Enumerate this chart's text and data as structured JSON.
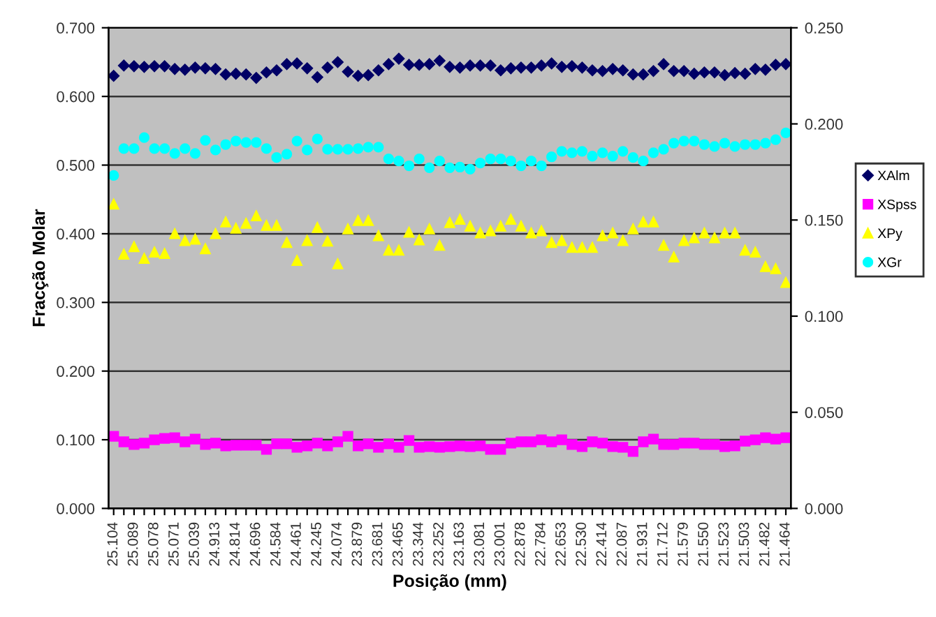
{
  "chart_data": {
    "type": "scatter",
    "xlabel": "Posição (mm)",
    "ylabel": "Fracção Molar",
    "categories": [
      "25.104",
      null,
      "25.089",
      null,
      "25.078",
      null,
      "25.071",
      null,
      "25.039",
      null,
      "24.913",
      null,
      "24.814",
      null,
      "24.696",
      null,
      "24.584",
      null,
      "24.461",
      null,
      "24.245",
      null,
      "24.074",
      null,
      "23.879",
      null,
      "23.681",
      null,
      "23.465",
      null,
      "23.344",
      null,
      "23.252",
      null,
      "23.163",
      null,
      "23.081",
      null,
      "23.001",
      null,
      "22.878",
      null,
      "22.784",
      null,
      "22.653",
      null,
      "22.530",
      null,
      "22.414",
      null,
      "22.087",
      null,
      "21.931",
      null,
      "21.712",
      null,
      "21.579",
      null,
      "21.550",
      null,
      "21.523",
      null,
      "21.503",
      null,
      "21.482",
      null,
      "21.464"
    ],
    "series": [
      {
        "name": "XAlm",
        "color": "#000066",
        "marker": "diamond",
        "values": [
          0.63,
          0.645,
          0.644,
          0.643,
          0.644,
          0.644,
          0.64,
          0.639,
          0.642,
          0.641,
          0.64,
          0.632,
          0.633,
          0.632,
          0.627,
          0.635,
          0.638,
          0.647,
          0.648,
          0.641,
          0.628,
          0.642,
          0.65,
          0.636,
          0.63,
          0.631,
          0.638,
          0.647,
          0.655,
          0.646,
          0.646,
          0.647,
          0.652,
          0.643,
          0.642,
          0.645,
          0.645,
          0.645,
          0.638,
          0.641,
          0.642,
          0.642,
          0.645,
          0.648,
          0.643,
          0.644,
          0.642,
          0.638,
          0.637,
          0.64,
          0.638,
          0.632,
          0.632,
          0.637,
          0.647,
          0.637,
          0.637,
          0.633,
          0.635,
          0.635,
          0.631,
          0.634,
          0.633,
          0.64,
          0.639,
          0.646,
          0.647
        ]
      },
      {
        "name": "XSpss",
        "color": "#ff00ff",
        "marker": "square",
        "values": [
          0.105,
          0.097,
          0.093,
          0.095,
          0.1,
          0.102,
          0.103,
          0.097,
          0.101,
          0.093,
          0.095,
          0.091,
          0.092,
          0.092,
          0.092,
          0.086,
          0.094,
          0.094,
          0.089,
          0.091,
          0.095,
          0.091,
          0.097,
          0.105,
          0.091,
          0.094,
          0.089,
          0.094,
          0.089,
          0.099,
          0.089,
          0.09,
          0.089,
          0.09,
          0.091,
          0.09,
          0.091,
          0.086,
          0.086,
          0.095,
          0.097,
          0.097,
          0.1,
          0.097,
          0.1,
          0.093,
          0.09,
          0.097,
          0.095,
          0.09,
          0.089,
          0.083,
          0.097,
          0.101,
          0.093,
          0.093,
          0.095,
          0.095,
          0.093,
          0.093,
          0.09,
          0.091,
          0.098,
          0.1,
          0.103,
          0.101,
          0.103
        ]
      },
      {
        "name": "XPy",
        "color": "#ffff00",
        "marker": "triangle",
        "values": [
          0.443,
          0.37,
          0.381,
          0.364,
          0.373,
          0.371,
          0.4,
          0.39,
          0.392,
          0.378,
          0.4,
          0.417,
          0.408,
          0.415,
          0.426,
          0.412,
          0.412,
          0.387,
          0.361,
          0.39,
          0.409,
          0.389,
          0.356,
          0.407,
          0.419,
          0.419,
          0.397,
          0.376,
          0.376,
          0.402,
          0.391,
          0.407,
          0.383,
          0.416,
          0.421,
          0.411,
          0.401,
          0.404,
          0.411,
          0.421,
          0.411,
          0.401,
          0.404,
          0.387,
          0.39,
          0.38,
          0.38,
          0.38,
          0.397,
          0.401,
          0.39,
          0.407,
          0.417,
          0.417,
          0.383,
          0.366,
          0.39,
          0.394,
          0.401,
          0.394,
          0.401,
          0.401,
          0.376,
          0.373,
          0.352,
          0.349,
          0.329
        ]
      },
      {
        "name": "XGr",
        "color": "#00ffff",
        "marker": "circle",
        "values": [
          0.485,
          0.524,
          0.524,
          0.54,
          0.524,
          0.524,
          0.517,
          0.524,
          0.517,
          0.536,
          0.522,
          0.53,
          0.535,
          0.533,
          0.533,
          0.524,
          0.511,
          0.516,
          0.535,
          0.522,
          0.538,
          0.523,
          0.523,
          0.523,
          0.524,
          0.526,
          0.526,
          0.509,
          0.506,
          0.499,
          0.509,
          0.496,
          0.506,
          0.496,
          0.497,
          0.494,
          0.503,
          0.509,
          0.509,
          0.506,
          0.499,
          0.506,
          0.499,
          0.512,
          0.52,
          0.518,
          0.52,
          0.513,
          0.518,
          0.513,
          0.52,
          0.511,
          0.506,
          0.518,
          0.523,
          0.532,
          0.535,
          0.535,
          0.53,
          0.527,
          0.532,
          0.527,
          0.53,
          0.53,
          0.532,
          0.537,
          0.547
        ]
      }
    ],
    "ylim": [
      0,
      0.7
    ],
    "yticks": [
      {
        "value": 0,
        "label": "0.000"
      },
      {
        "value": 0.1,
        "label": "0.100"
      },
      {
        "value": 0.2,
        "label": "0.200"
      },
      {
        "value": 0.3,
        "label": "0.300"
      },
      {
        "value": 0.4,
        "label": "0.400"
      },
      {
        "value": 0.5,
        "label": "0.500"
      },
      {
        "value": 0.6,
        "label": "0.600"
      },
      {
        "value": 0.7,
        "label": "0.700"
      }
    ],
    "y2lim": [
      0,
      0.25
    ],
    "y2ticks": [
      {
        "value": 0,
        "label": "0.000"
      },
      {
        "value": 0.05,
        "label": "0.050"
      },
      {
        "value": 0.1,
        "label": "0.100"
      },
      {
        "value": 0.15,
        "label": "0.150"
      },
      {
        "value": 0.2,
        "label": "0.200"
      },
      {
        "value": 0.25,
        "label": "0.250"
      }
    ],
    "grid": "y",
    "legend": "right"
  }
}
